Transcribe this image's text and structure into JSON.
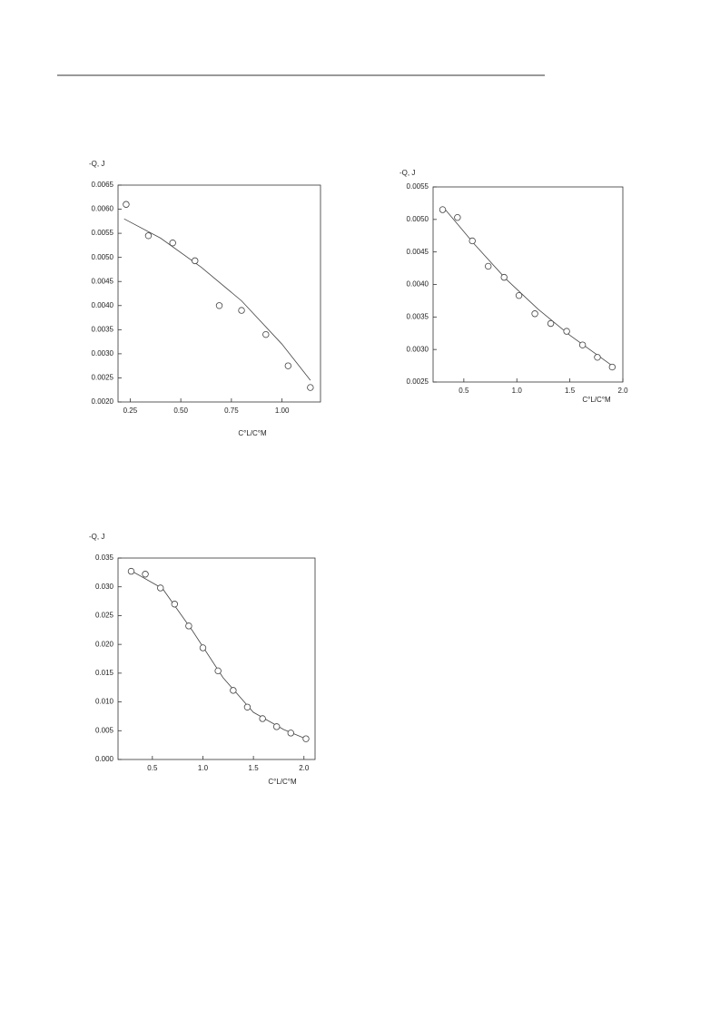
{
  "chart_data": [
    {
      "type": "scatter",
      "y_label": "-Q, J",
      "x_label": "C°L/C°M",
      "xlim": [
        0.19,
        1.19
      ],
      "ylim": [
        0.002,
        0.0065
      ],
      "xticks": [
        0.25,
        {
          "value": 0.5,
          "label": "0.50"
        },
        0.75,
        {
          "value": 1,
          "label": "1.00"
        }
      ],
      "yticks": [
        {
          "value": 0.002,
          "label": "0.0020"
        },
        0.0025,
        {
          "value": 0.003,
          "label": "0.0030"
        },
        0.0035,
        {
          "value": 0.004,
          "label": "0.0040"
        },
        0.0045,
        {
          "value": 0.005,
          "label": "0.0050"
        },
        0.0055,
        {
          "value": 0.006,
          "label": "0.0060"
        },
        0.0065
      ],
      "points": {
        "x": [
          0.23,
          0.34,
          0.46,
          0.57,
          0.69,
          0.8,
          0.92,
          1.03,
          1.14
        ],
        "values": [
          0.0061,
          0.00545,
          0.0053,
          0.00493,
          0.004,
          0.0039,
          0.0034,
          0.00275,
          0.0023
        ]
      },
      "fit": {
        "x": [
          0.22,
          0.4,
          0.6,
          0.8,
          1.0,
          1.14
        ],
        "values": [
          0.0058,
          0.0054,
          0.0048,
          0.0041,
          0.0032,
          0.00245
        ]
      }
    },
    {
      "type": "scatter",
      "y_label": "-Q, J",
      "x_label": "C°L/C°M",
      "xlim": [
        0.21,
        2.0
      ],
      "ylim": [
        0.0025,
        0.0055
      ],
      "xticks": [
        0.5,
        {
          "value": 1,
          "label": "1.0"
        },
        1.5,
        {
          "value": 2,
          "label": "2.0"
        }
      ],
      "yticks": [
        0.0025,
        {
          "value": 0.003,
          "label": "0.0030"
        },
        0.0035,
        {
          "value": 0.004,
          "label": "0.0040"
        },
        0.0045,
        {
          "value": 0.005,
          "label": "0.0050"
        },
        0.0055
      ],
      "points": {
        "x": [
          0.3,
          0.44,
          0.58,
          0.73,
          0.88,
          1.02,
          1.17,
          1.32,
          1.47,
          1.62,
          1.76,
          1.9
        ],
        "values": [
          0.00515,
          0.00503,
          0.00467,
          0.00428,
          0.00411,
          0.00383,
          0.00355,
          0.0034,
          0.00328,
          0.00307,
          0.00288,
          0.00273
        ]
      },
      "fit": {
        "x": [
          0.3,
          0.6,
          0.9,
          1.2,
          1.5,
          1.9
        ],
        "values": [
          0.0052,
          0.00462,
          0.00408,
          0.00362,
          0.00322,
          0.00275
        ]
      }
    },
    {
      "type": "scatter",
      "y_label": "-Q, J",
      "x_label": "C°L/C°M",
      "xlim": [
        0.16,
        2.11
      ],
      "ylim": [
        0,
        0.035
      ],
      "xticks": [
        0.5,
        {
          "value": 1,
          "label": "1.0"
        },
        1.5,
        {
          "value": 2,
          "label": "2.0"
        }
      ],
      "yticks": [
        {
          "value": 0,
          "label": "0.000"
        },
        0.005,
        {
          "value": 0.01,
          "label": "0.010"
        },
        0.015,
        {
          "value": 0.02,
          "label": "0.020"
        },
        0.025,
        {
          "value": 0.03,
          "label": "0.030"
        },
        0.035
      ],
      "points": {
        "x": [
          0.29,
          0.43,
          0.58,
          0.72,
          0.86,
          1.0,
          1.15,
          1.3,
          1.44,
          1.59,
          1.73,
          1.87,
          2.02
        ],
        "values": [
          0.0327,
          0.0322,
          0.0298,
          0.027,
          0.0232,
          0.0194,
          0.0154,
          0.012,
          0.0091,
          0.0071,
          0.0057,
          0.0046,
          0.0036
        ]
      },
      "fit": {
        "x": [
          0.29,
          0.6,
          0.9,
          1.2,
          1.5,
          1.8,
          2.02
        ],
        "values": [
          0.0328,
          0.0297,
          0.0223,
          0.0142,
          0.0082,
          0.0052,
          0.0036
        ]
      }
    }
  ]
}
